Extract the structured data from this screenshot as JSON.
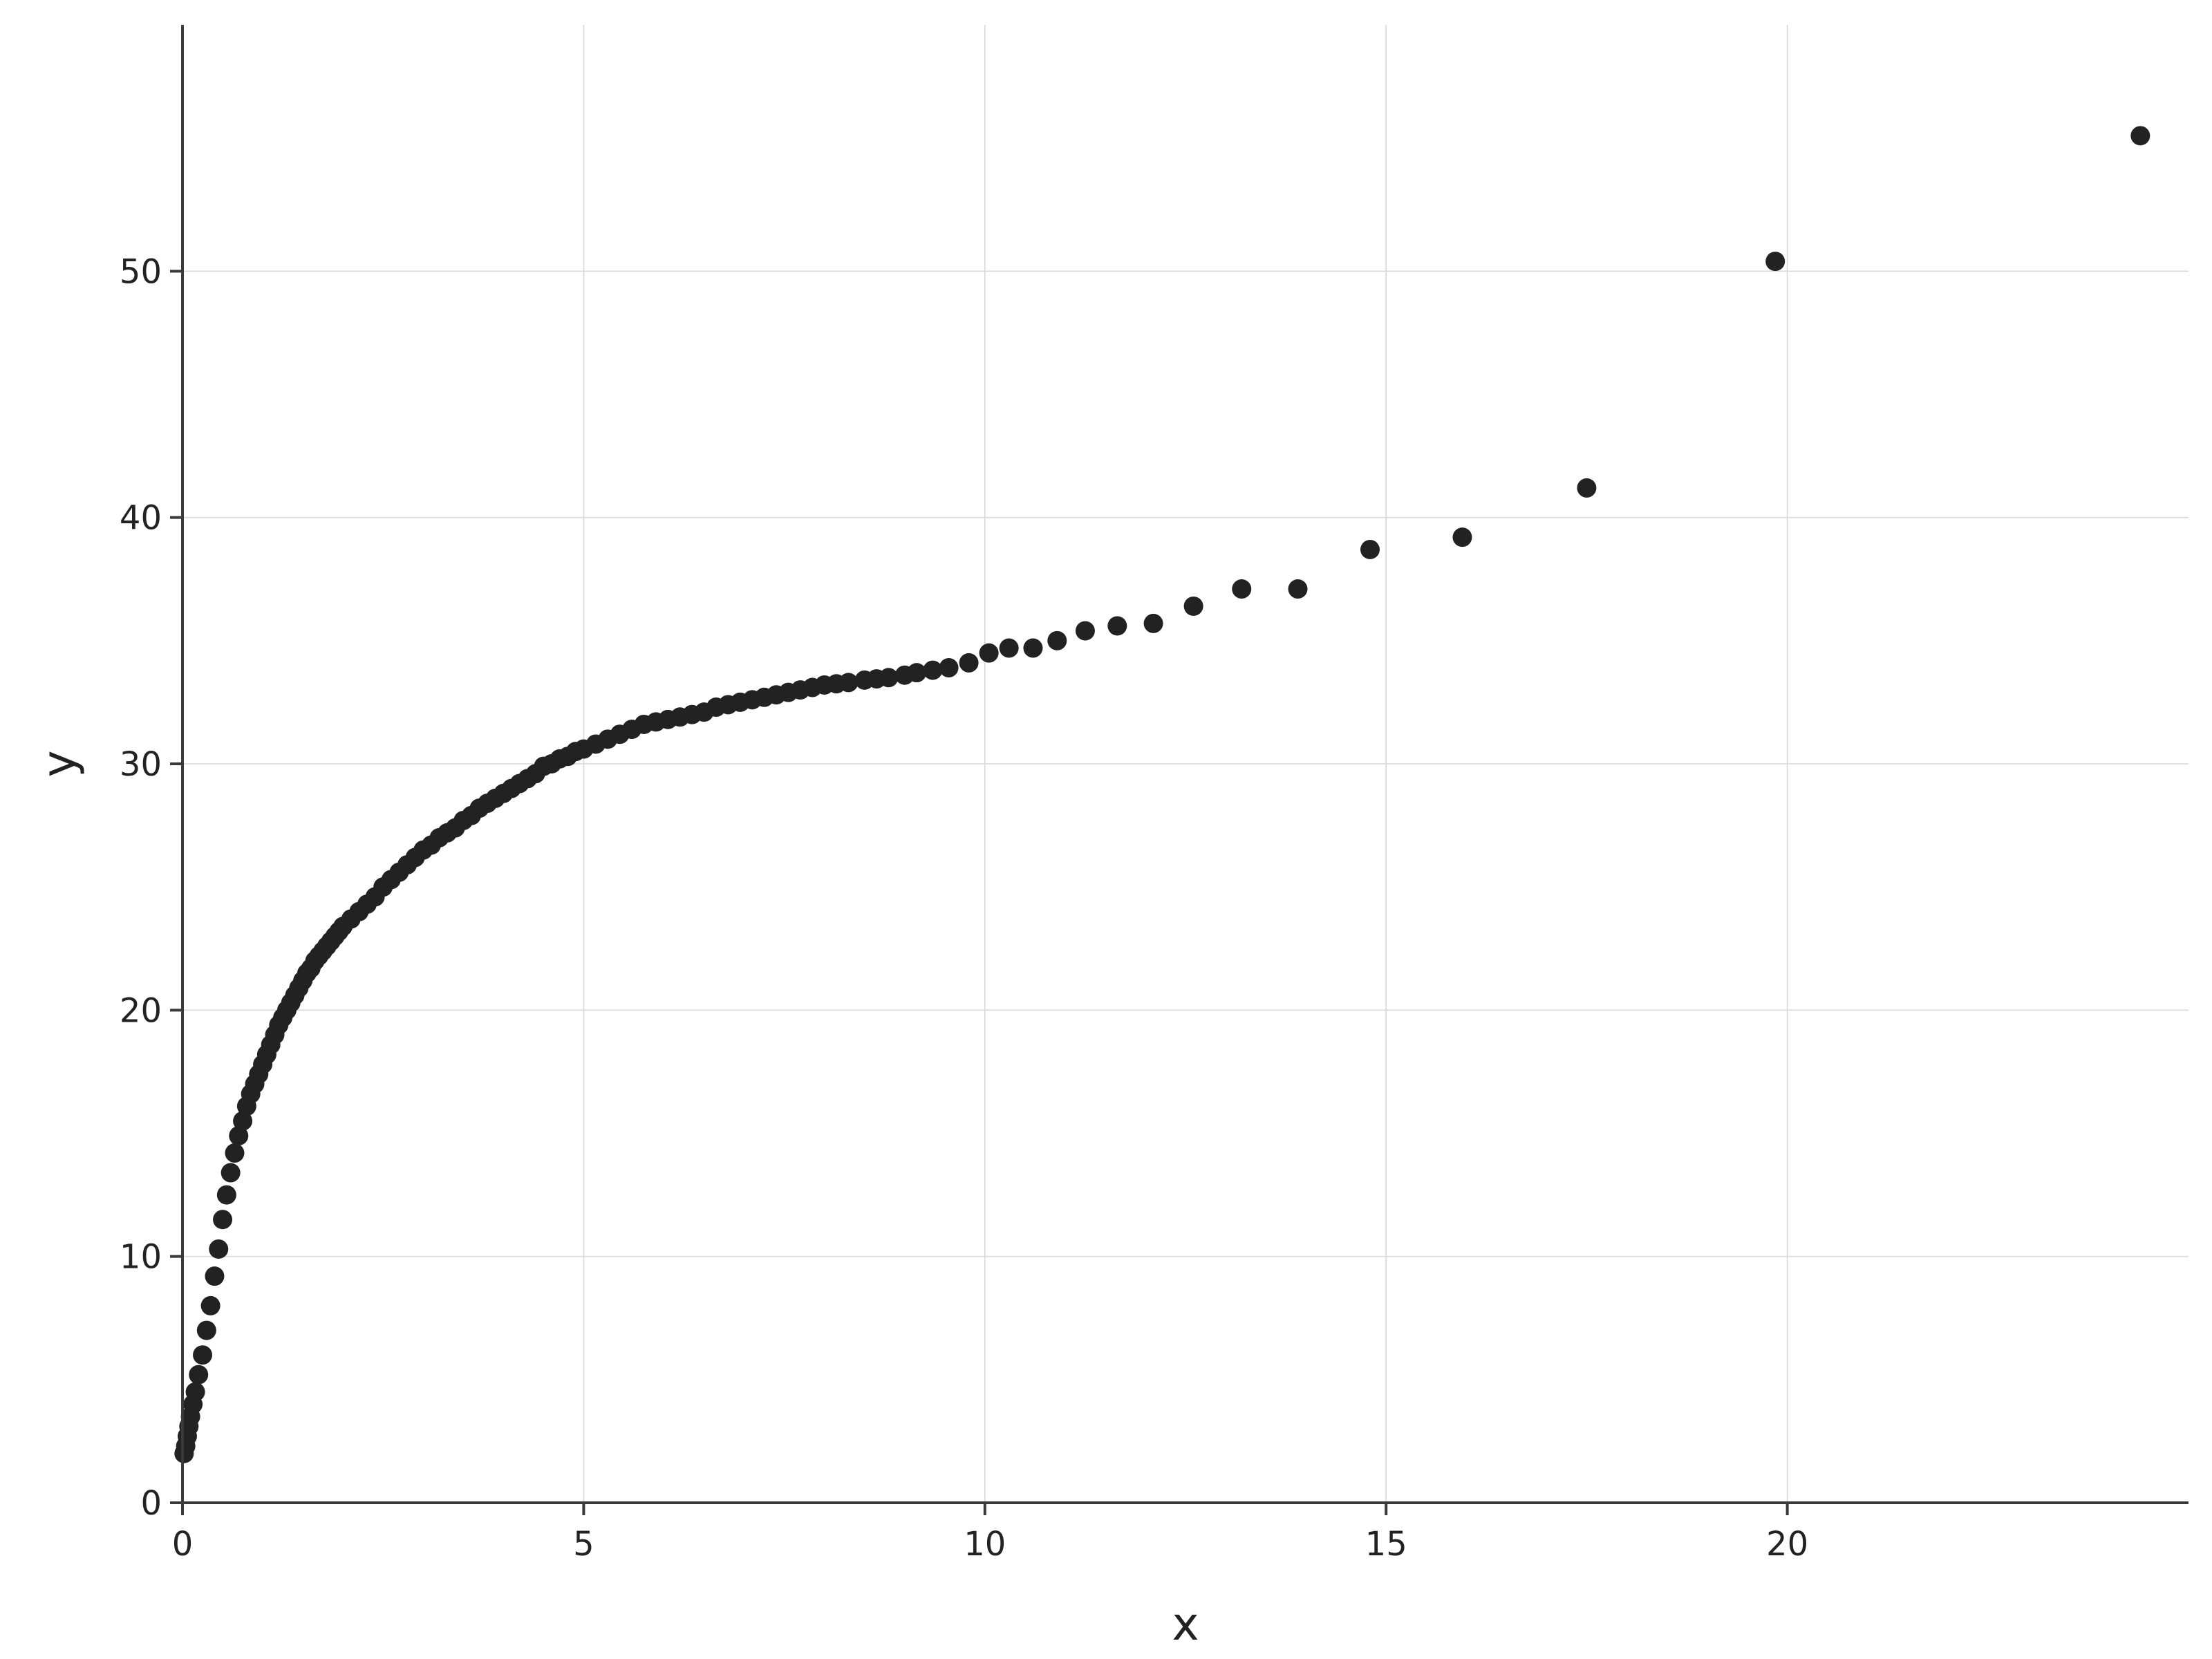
{
  "chart_data": {
    "type": "scatter",
    "xlabel": "x",
    "ylabel": "y",
    "xlim": [
      0,
      25
    ],
    "ylim": [
      0,
      60
    ],
    "x_ticks": [
      0,
      5,
      10,
      15,
      20
    ],
    "y_ticks": [
      0,
      10,
      20,
      30,
      40,
      50
    ],
    "x_tick_labels": [
      "0",
      "5",
      "10",
      "15",
      "20"
    ],
    "y_tick_labels": [
      "0",
      "10",
      "20",
      "30",
      "40",
      "50"
    ],
    "grid": true,
    "point_color": "#222222",
    "series": [
      {
        "x": [
          0.02,
          0.04,
          0.06,
          0.08,
          0.1,
          0.13,
          0.16,
          0.2,
          0.25,
          0.3,
          0.35,
          0.4,
          0.45,
          0.5,
          0.55,
          0.6,
          0.65,
          0.7,
          0.75,
          0.8,
          0.85,
          0.9,
          0.95,
          1.0,
          1.05,
          1.1,
          1.15,
          1.2,
          1.25,
          1.3,
          1.35,
          1.4,
          1.45,
          1.5,
          1.55,
          1.6,
          1.65,
          1.7,
          1.75,
          1.8,
          1.85,
          1.9,
          1.95,
          2.0,
          2.1,
          2.2,
          2.3,
          2.4,
          2.5,
          2.6,
          2.7,
          2.8,
          2.9,
          3.0,
          3.1,
          3.2,
          3.3,
          3.4,
          3.5,
          3.6,
          3.7,
          3.8,
          3.9,
          4.0,
          4.1,
          4.2,
          4.3,
          4.4,
          4.5,
          4.6,
          4.7,
          4.8,
          4.9,
          5.0,
          5.15,
          5.3,
          5.45,
          5.6,
          5.75,
          5.9,
          6.05,
          6.2,
          6.35,
          6.5,
          6.65,
          6.8,
          6.95,
          7.1,
          7.25,
          7.4,
          7.55,
          7.7,
          7.85,
          8.0,
          8.15,
          8.3,
          8.5,
          8.65,
          8.8,
          9.0,
          9.15,
          9.35,
          9.55,
          9.8,
          10.05,
          10.3,
          10.6,
          10.9,
          11.25,
          11.65,
          12.1,
          12.6,
          13.2,
          13.9,
          14.8,
          15.95,
          17.5,
          19.85,
          24.4
        ],
        "y": [
          2.0,
          2.3,
          2.7,
          3.1,
          3.5,
          4.0,
          4.5,
          5.2,
          6.0,
          7.0,
          8.0,
          9.2,
          10.3,
          11.5,
          12.5,
          13.4,
          14.2,
          14.9,
          15.5,
          16.1,
          16.6,
          17.0,
          17.4,
          17.8,
          18.2,
          18.6,
          19.0,
          19.4,
          19.7,
          20.0,
          20.3,
          20.6,
          20.9,
          21.2,
          21.5,
          21.7,
          22.0,
          22.2,
          22.4,
          22.6,
          22.8,
          23.0,
          23.2,
          23.4,
          23.7,
          24.0,
          24.3,
          24.6,
          25.0,
          25.3,
          25.6,
          25.9,
          26.2,
          26.5,
          26.7,
          27.0,
          27.2,
          27.4,
          27.7,
          27.9,
          28.2,
          28.4,
          28.6,
          28.8,
          29.0,
          29.2,
          29.4,
          29.6,
          29.9,
          30.0,
          30.2,
          30.3,
          30.5,
          30.6,
          30.8,
          31.0,
          31.2,
          31.4,
          31.6,
          31.7,
          31.8,
          31.9,
          32.0,
          32.1,
          32.3,
          32.4,
          32.5,
          32.6,
          32.7,
          32.8,
          32.9,
          33.0,
          33.1,
          33.2,
          33.25,
          33.3,
          33.4,
          33.45,
          33.5,
          33.6,
          33.7,
          33.8,
          33.9,
          34.1,
          34.5,
          34.7,
          34.7,
          35.0,
          35.4,
          35.6,
          35.7,
          36.4,
          37.1,
          37.1,
          38.7,
          39.2,
          41.2,
          50.4,
          55.5
        ]
      }
    ]
  }
}
